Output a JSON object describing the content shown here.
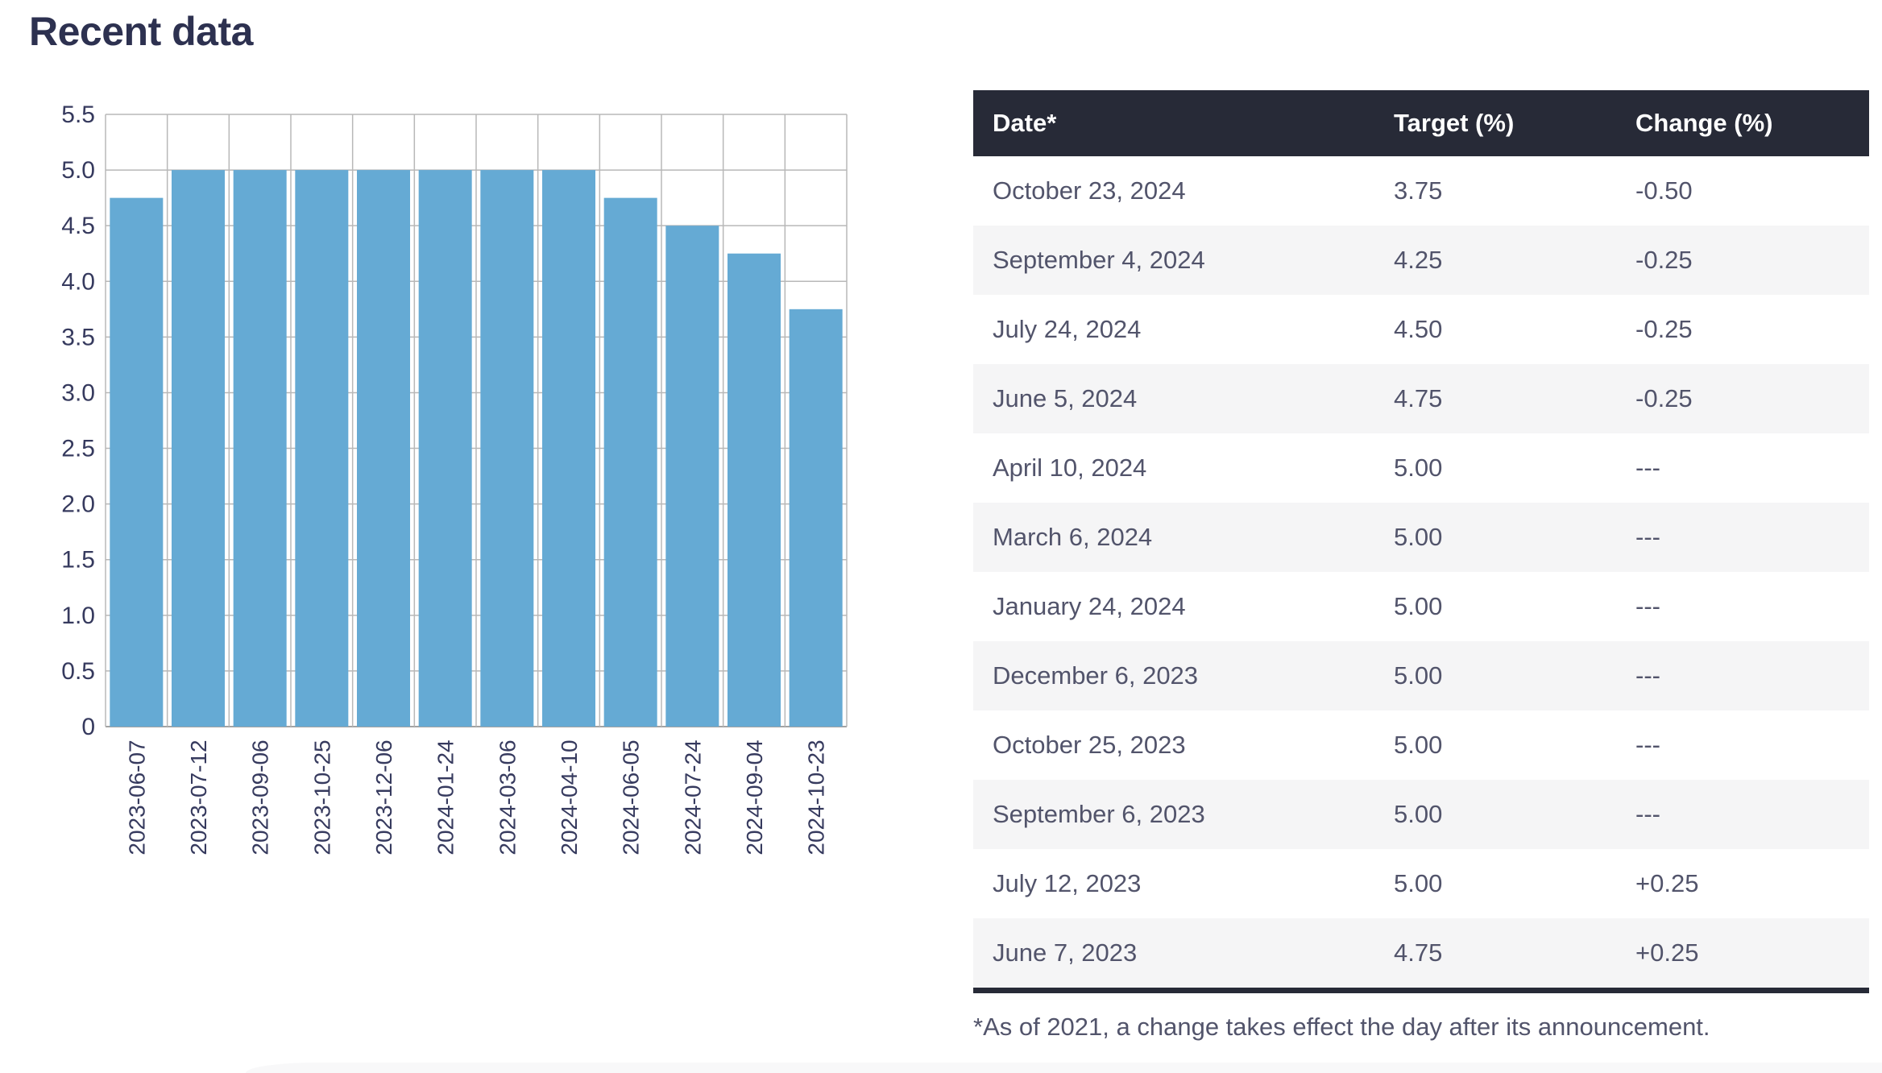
{
  "page": {
    "title": "Recent data"
  },
  "chart_data": {
    "type": "bar",
    "title": "",
    "xlabel": "",
    "ylabel": "",
    "categories": [
      "2023-06-07",
      "2023-07-12",
      "2023-09-06",
      "2023-10-25",
      "2023-12-06",
      "2024-01-24",
      "2024-03-06",
      "2024-04-10",
      "2024-06-05",
      "2024-07-24",
      "2024-09-04",
      "2024-10-23"
    ],
    "values": [
      4.75,
      5.0,
      5.0,
      5.0,
      5.0,
      5.0,
      5.0,
      5.0,
      4.75,
      4.5,
      4.25,
      3.75
    ],
    "ylim": [
      0,
      5.5
    ],
    "ytick_step": 0.5,
    "ytick_labels": [
      "0",
      "0.5",
      "1.0",
      "1.5",
      "2.0",
      "2.5",
      "3.0",
      "3.5",
      "4.0",
      "4.5",
      "5.0",
      "5.5"
    ],
    "grid": true,
    "legend": "none",
    "colors": {
      "bar": "#65aad4",
      "grid": "#b8b8b8",
      "axis": "#a3a3a3",
      "tick_text": "#363a5e"
    }
  },
  "table": {
    "columns": [
      "Date*",
      "Target (%)",
      "Change (%)"
    ],
    "rows": [
      [
        "October 23, 2024",
        "3.75",
        "-0.50"
      ],
      [
        "September 4, 2024",
        "4.25",
        "-0.25"
      ],
      [
        "July 24, 2024",
        "4.50",
        "-0.25"
      ],
      [
        "June 5, 2024",
        "4.75",
        "-0.25"
      ],
      [
        "April 10, 2024",
        "5.00",
        "---"
      ],
      [
        "March 6, 2024",
        "5.00",
        "---"
      ],
      [
        "January 24, 2024",
        "5.00",
        "---"
      ],
      [
        "December 6, 2023",
        "5.00",
        "---"
      ],
      [
        "October 25, 2023",
        "5.00",
        "---"
      ],
      [
        "September 6, 2023",
        "5.00",
        "---"
      ],
      [
        "July 12, 2023",
        "5.00",
        "+0.25"
      ],
      [
        "June 7, 2023",
        "4.75",
        "+0.25"
      ]
    ],
    "footnote": "*As of 2021, a change takes effect the day after its announcement."
  },
  "theme": {
    "title_color": "#2d3150",
    "header_bg": "#272a37",
    "header_text": "#ffffff",
    "body_text": "#52546b",
    "zebra_bg": "#f5f5f6"
  }
}
